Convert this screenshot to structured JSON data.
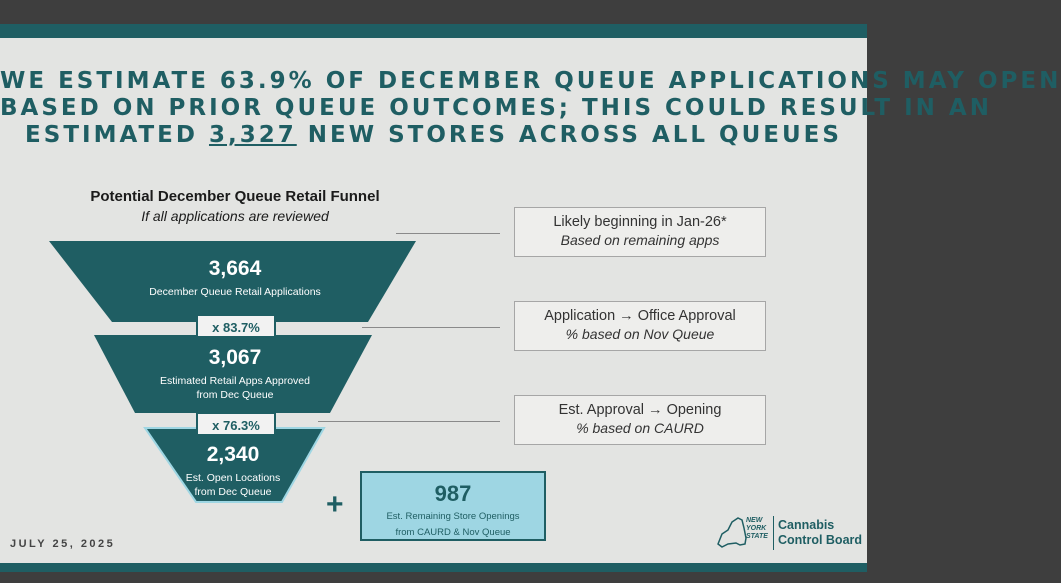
{
  "headline": {
    "line1": "WE ESTIMATE 63.9% OF DECEMBER QUEUE APPLICATIONS MAY OPEN",
    "line2": "BASED ON PRIOR QUEUE OUTCOMES; THIS COULD RESULT IN AN",
    "line3_prefix": "ESTIMATED ",
    "line3_number": "3,327",
    "line3_suffix": " NEW STORES ACROSS ALL QUEUES"
  },
  "funnel": {
    "title": "Potential December Queue Retail Funnel",
    "subtitle": "If all applications are reviewed",
    "stages": [
      {
        "value": "3,664",
        "label": "December Queue Retail Applications"
      },
      {
        "value": "3,067",
        "label_line1": "Estimated Retail Apps Approved",
        "label_line2": "from Dec Queue"
      },
      {
        "value": "2,340",
        "label_line1": "Est. Open Locations",
        "label_line2": "from Dec Queue"
      }
    ],
    "multipliers": [
      "x 83.7%",
      "x 76.3%"
    ]
  },
  "notes": [
    {
      "title": "Likely beginning in Jan-26*",
      "subtitle": "Based on remaining apps"
    },
    {
      "title": "Application → Office Approval",
      "subtitle": "% based on Nov Queue"
    },
    {
      "title": "Est. Approval → Opening",
      "subtitle": "% based on CAURD"
    }
  ],
  "remaining": {
    "plus": "+",
    "value": "987",
    "label_line1": "Est. Remaining Store Openings",
    "label_line2": "from CAURD & Nov Queue"
  },
  "footer": {
    "date": "JULY 25, 2025",
    "state_lines": [
      "NEW",
      "YORK",
      "STATE"
    ],
    "org_line1": "Cannabis",
    "org_line2": "Control Board"
  },
  "colors": {
    "teal": "#1f5e63",
    "light_blue": "#9ed6e3",
    "background": "#e3e4e2"
  }
}
